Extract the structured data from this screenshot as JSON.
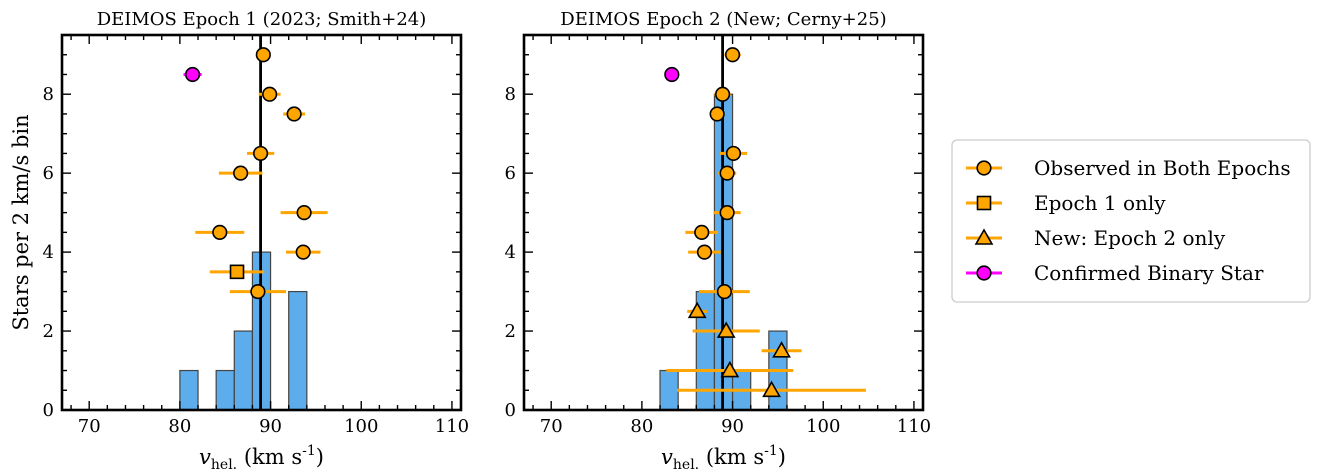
{
  "chart_data": [
    {
      "type": "scatter",
      "title": "DEIMOS Epoch 1 (2023; Smith+24)",
      "xlabel": "v_hel. (km s^-1)",
      "ylabel": "Stars per 2 km/s bin",
      "xlim": [
        67,
        111
      ],
      "ylim": [
        0,
        9.5
      ],
      "x_ticks": [
        "70",
        "80",
        "90",
        "100",
        "110"
      ],
      "y_ticks": [
        "0",
        "2",
        "4",
        "6",
        "8"
      ],
      "systemic_velocity": 88.9,
      "histogram": [
        {
          "x0": 80,
          "x1": 82,
          "count": 1
        },
        {
          "x0": 84,
          "x1": 86,
          "count": 1
        },
        {
          "x0": 86,
          "x1": 88,
          "count": 2
        },
        {
          "x0": 88,
          "x1": 90,
          "count": 4
        },
        {
          "x0": 92,
          "x1": 94,
          "count": 3
        }
      ],
      "series": [
        {
          "name": "Observed in Both Epochs",
          "marker": "circle",
          "color": "#FFA500",
          "points": [
            {
              "x": 89.2,
              "y": 9.0,
              "xerr": 0.7
            },
            {
              "x": 89.9,
              "y": 8.0,
              "xerr": 1.2
            },
            {
              "x": 92.6,
              "y": 7.5,
              "xerr": 1.2
            },
            {
              "x": 88.9,
              "y": 6.5,
              "xerr": 1.5
            },
            {
              "x": 86.7,
              "y": 6.0,
              "xerr": 2.4
            },
            {
              "x": 93.7,
              "y": 5.0,
              "xerr": 2.6
            },
            {
              "x": 84.4,
              "y": 4.5,
              "xerr": 2.7
            },
            {
              "x": 93.6,
              "y": 4.0,
              "xerr": 1.9
            },
            {
              "x": 88.6,
              "y": 3.0,
              "xerr": 3.1
            }
          ]
        },
        {
          "name": "Epoch 1 only",
          "marker": "square",
          "color": "#FFA500",
          "points": [
            {
              "x": 86.3,
              "y": 3.5,
              "xerr": 3.0
            }
          ]
        },
        {
          "name": "Confirmed Binary Star",
          "marker": "circle",
          "color": "#FF00FF",
          "points": [
            {
              "x": 81.4,
              "y": 8.5,
              "xerr": 1.0
            }
          ]
        }
      ]
    },
    {
      "type": "scatter",
      "title": "DEIMOS Epoch 2 (New; Cerny+25)",
      "xlabel": "v_hel. (km s^-1)",
      "ylabel": "",
      "xlim": [
        67,
        111
      ],
      "ylim": [
        0,
        9.5
      ],
      "x_ticks": [
        "70",
        "80",
        "90",
        "100",
        "110"
      ],
      "y_ticks": [
        "0",
        "2",
        "4",
        "6",
        "8"
      ],
      "systemic_velocity": 88.9,
      "histogram": [
        {
          "x0": 82,
          "x1": 84,
          "count": 1
        },
        {
          "x0": 86,
          "x1": 88,
          "count": 3
        },
        {
          "x0": 88,
          "x1": 90,
          "count": 8
        },
        {
          "x0": 90,
          "x1": 92,
          "count": 1
        },
        {
          "x0": 94,
          "x1": 96,
          "count": 2
        }
      ],
      "series": [
        {
          "name": "Observed in Both Epochs",
          "marker": "circle",
          "color": "#FFA500",
          "points": [
            {
              "x": 90.0,
              "y": 9.0,
              "xerr": 0.9
            },
            {
              "x": 88.9,
              "y": 8.0,
              "xerr": 0.9
            },
            {
              "x": 88.3,
              "y": 7.5,
              "xerr": 0.8
            },
            {
              "x": 90.1,
              "y": 6.5,
              "xerr": 1.5
            },
            {
              "x": 89.4,
              "y": 6.0,
              "xerr": 1.0
            },
            {
              "x": 89.4,
              "y": 5.0,
              "xerr": 1.5
            },
            {
              "x": 86.6,
              "y": 4.5,
              "xerr": 1.8
            },
            {
              "x": 86.9,
              "y": 4.0,
              "xerr": 1.8
            },
            {
              "x": 89.1,
              "y": 3.0,
              "xerr": 2.8
            }
          ]
        },
        {
          "name": "New: Epoch 2 only",
          "marker": "triangle",
          "color": "#FFA500",
          "points": [
            {
              "x": 86.1,
              "y": 2.5,
              "xerr": 1.1
            },
            {
              "x": 89.3,
              "y": 2.0,
              "xerr": 3.7
            },
            {
              "x": 95.4,
              "y": 1.5,
              "xerr": 2.2
            },
            {
              "x": 89.7,
              "y": 1.0,
              "xerr": 7.0
            },
            {
              "x": 94.3,
              "y": 0.5,
              "xerr": 10.4
            }
          ]
        },
        {
          "name": "Confirmed Binary Star",
          "marker": "circle",
          "color": "#FF00FF",
          "points": [
            {
              "x": 83.3,
              "y": 8.5,
              "xerr": 0.7
            }
          ]
        }
      ]
    }
  ],
  "legend": {
    "location": "right",
    "items": [
      {
        "label": "Observed in Both Epochs",
        "marker": "circle",
        "color": "#FFA500"
      },
      {
        "label": "Epoch 1 only",
        "marker": "square",
        "color": "#FFA500"
      },
      {
        "label": "New: Epoch 2 only",
        "marker": "triangle",
        "color": "#FFA500"
      },
      {
        "label": "Confirmed Binary Star",
        "marker": "circle",
        "color": "#FF00FF"
      }
    ]
  },
  "colors": {
    "histogram_fill": "#5DADEC",
    "histogram_edge": "#444444",
    "errorbar": "#FFA500",
    "marker_edge": "#000000",
    "systemic_line": "#000000"
  }
}
